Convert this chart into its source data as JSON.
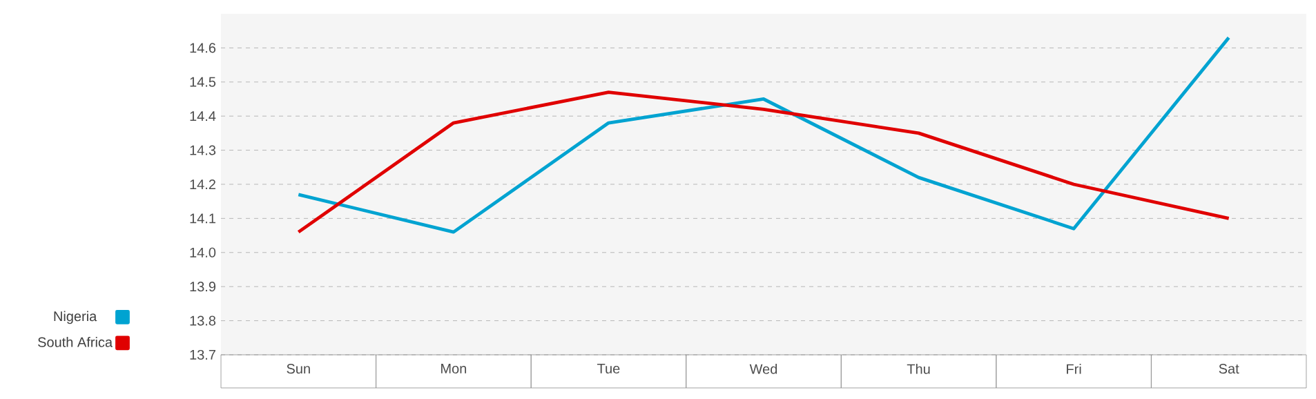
{
  "chart_data": {
    "type": "line",
    "categories": [
      "Sun",
      "Mon",
      "Tue",
      "Wed",
      "Thu",
      "Fri",
      "Sat"
    ],
    "series": [
      {
        "name": "Nigeria",
        "color": "#00a3d1",
        "values": [
          14.17,
          14.06,
          14.38,
          14.45,
          14.22,
          14.07,
          14.63
        ]
      },
      {
        "name": "South Africa",
        "color": "#e00000",
        "values": [
          14.06,
          14.38,
          14.47,
          14.42,
          14.35,
          14.2,
          14.1
        ]
      }
    ],
    "ylim": [
      13.7,
      14.7
    ],
    "yticks": [
      13.7,
      13.8,
      13.9,
      {
        "value": 14,
        "label": "14.0"
      },
      14.1,
      14.2,
      14.3,
      14.4,
      14.5,
      14.6
    ],
    "grid": "y",
    "legend": "bottom left",
    "marker": "none",
    "line_style": "solid"
  }
}
